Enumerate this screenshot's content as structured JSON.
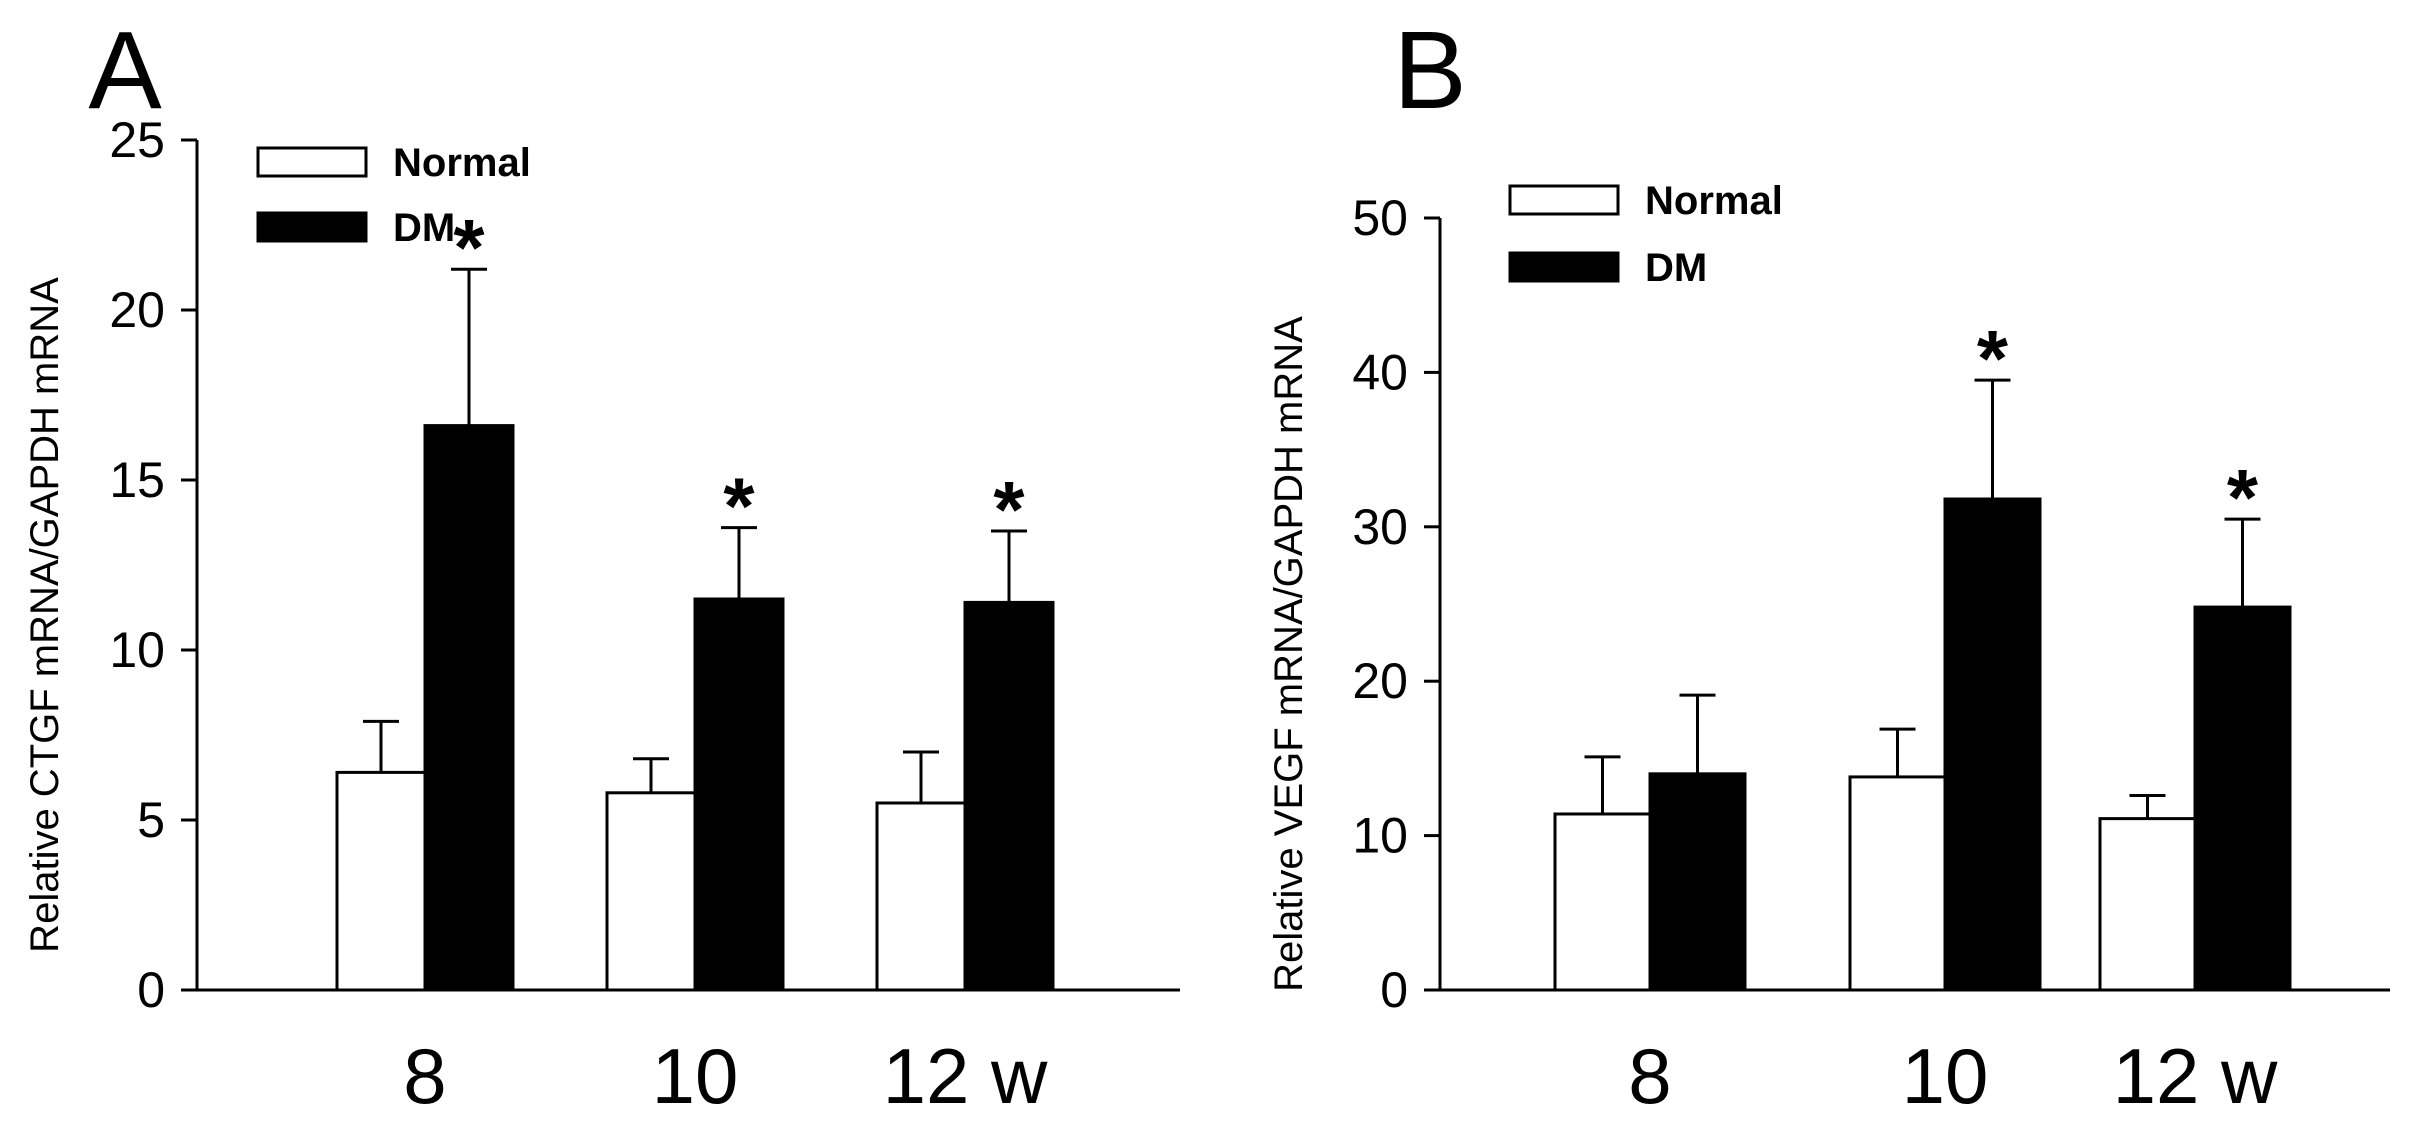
{
  "chart_data": [
    {
      "type": "bar",
      "panel": "A",
      "title": "",
      "xlabel": "",
      "ylabel": "Relative CTGF mRNA/GAPDH mRNA",
      "categories": [
        "8",
        "10",
        "12 w"
      ],
      "ylim": [
        0,
        25
      ],
      "yticks": [
        0,
        5,
        10,
        15,
        20,
        25
      ],
      "grid": false,
      "legend_position": "top-left",
      "series": [
        {
          "name": "Normal",
          "fill": "#ffffff",
          "values": [
            6.4,
            5.8,
            5.5
          ],
          "errors": [
            1.5,
            1.0,
            1.5
          ],
          "significant": [
            false,
            false,
            false
          ]
        },
        {
          "name": "DM",
          "fill": "#000000",
          "values": [
            16.6,
            11.5,
            11.4
          ],
          "errors": [
            4.6,
            2.1,
            2.1
          ],
          "significant": [
            true,
            true,
            true
          ]
        }
      ],
      "significance_marker": "*"
    },
    {
      "type": "bar",
      "panel": "B",
      "title": "",
      "xlabel": "",
      "ylabel": "Relative VEGF mRNA/GAPDH mRNA",
      "categories": [
        "8",
        "10",
        "12 w"
      ],
      "ylim": [
        0,
        50
      ],
      "yticks": [
        0,
        10,
        20,
        30,
        40,
        50
      ],
      "grid": false,
      "legend_position": "top-left",
      "series": [
        {
          "name": "Normal",
          "fill": "#ffffff",
          "values": [
            11.4,
            13.8,
            11.1
          ],
          "errors": [
            3.7,
            3.1,
            1.5
          ],
          "significant": [
            false,
            false,
            false
          ]
        },
        {
          "name": "DM",
          "fill": "#000000",
          "values": [
            14.0,
            31.8,
            24.8
          ],
          "errors": [
            5.1,
            7.7,
            5.7
          ],
          "significant": [
            false,
            true,
            true
          ]
        }
      ],
      "significance_marker": "*"
    }
  ]
}
